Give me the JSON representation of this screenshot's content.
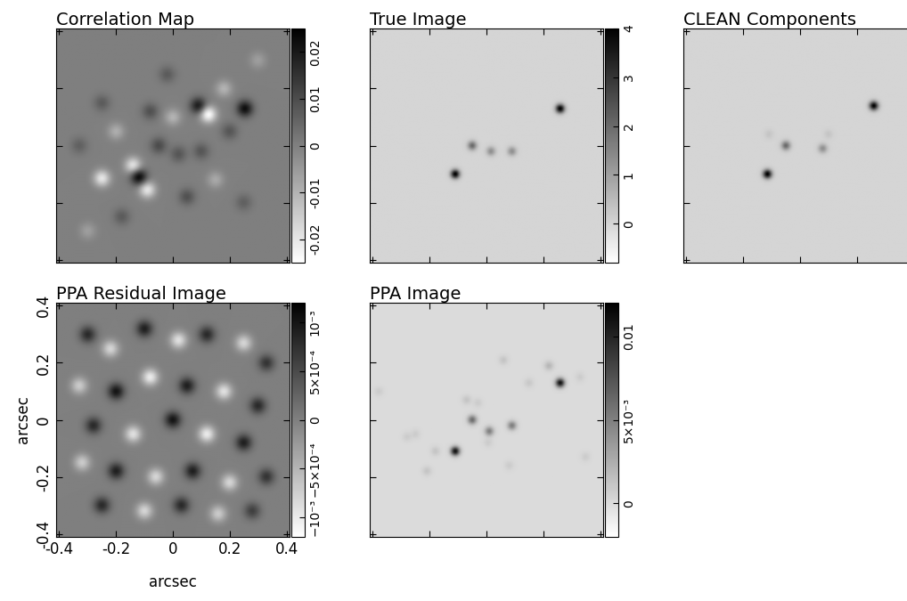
{
  "chart_data": [
    {
      "type": "heatmap",
      "title": "Correlation Map",
      "xlim": [
        -0.41,
        0.41
      ],
      "ylim": [
        -0.41,
        0.41
      ],
      "xticks": [
        -0.4,
        -0.2,
        0,
        0.2,
        0.4
      ],
      "yticks": [
        -0.4,
        -0.2,
        0,
        0.2,
        0.4
      ],
      "tick_labels": false,
      "sources": [
        {
          "x": 0.254,
          "y": 0.13,
          "value": 0.022
        },
        {
          "x": 0.09,
          "y": 0.14,
          "value": 0.02
        },
        {
          "x": -0.12,
          "y": -0.11,
          "value": 0.024
        },
        {
          "x": -0.25,
          "y": -0.115,
          "value": -0.02
        },
        {
          "x": 0.125,
          "y": 0.11,
          "value": -0.025
        },
        {
          "x": -0.14,
          "y": -0.07,
          "value": -0.02
        },
        {
          "x": -0.09,
          "y": -0.155,
          "value": -0.02
        },
        {
          "x": -0.05,
          "y": 0.0,
          "value": 0.01
        },
        {
          "x": 0.02,
          "y": -0.03,
          "value": 0.008
        },
        {
          "x": 0.1,
          "y": -0.02,
          "value": 0.008
        },
        {
          "x": 0.0,
          "y": 0.1,
          "value": -0.01
        },
        {
          "x": -0.08,
          "y": 0.12,
          "value": 0.009
        },
        {
          "x": 0.18,
          "y": 0.2,
          "value": -0.01
        },
        {
          "x": 0.2,
          "y": 0.05,
          "value": 0.008
        },
        {
          "x": -0.2,
          "y": 0.05,
          "value": -0.009
        },
        {
          "x": -0.25,
          "y": 0.15,
          "value": 0.007
        },
        {
          "x": 0.05,
          "y": -0.18,
          "value": 0.009
        },
        {
          "x": 0.15,
          "y": -0.12,
          "value": -0.008
        },
        {
          "x": -0.18,
          "y": -0.25,
          "value": 0.007
        },
        {
          "x": 0.25,
          "y": -0.2,
          "value": 0.006
        },
        {
          "x": -0.3,
          "y": -0.3,
          "value": -0.006
        },
        {
          "x": 0.3,
          "y": 0.3,
          "value": -0.006
        },
        {
          "x": -0.02,
          "y": 0.25,
          "value": 0.007
        },
        {
          "x": -0.33,
          "y": 0.0,
          "value": 0.006
        }
      ],
      "colorbar_lim": [
        -0.025,
        0.025
      ],
      "colorbar_ticks": [
        -0.02,
        -0.01,
        0,
        0.01,
        0.02
      ]
    },
    {
      "type": "heatmap",
      "title": "True Image",
      "xlim": [
        -0.41,
        0.41
      ],
      "ylim": [
        -0.41,
        0.41
      ],
      "xticks": [
        -0.4,
        -0.2,
        0,
        0.2,
        0.4
      ],
      "yticks": [
        -0.4,
        -0.2,
        0,
        0.2,
        0.4
      ],
      "tick_labels": false,
      "sources": [
        {
          "x": 0.26,
          "y": 0.13,
          "value": 4
        },
        {
          "x": -0.11,
          "y": -0.1,
          "value": 4
        },
        {
          "x": -0.05,
          "y": 0.0,
          "value": 2
        },
        {
          "x": 0.016,
          "y": -0.02,
          "value": 1.3
        },
        {
          "x": 0.09,
          "y": -0.02,
          "value": 1.3
        }
      ],
      "colorbar_lim": [
        -0.8,
        4
      ],
      "colorbar_ticks": [
        0,
        1,
        2,
        3,
        4
      ]
    },
    {
      "type": "heatmap",
      "title": "CLEAN Components",
      "xlim": [
        -0.41,
        0.41
      ],
      "ylim": [
        -0.41,
        0.41
      ],
      "xticks": [
        -0.4,
        -0.2,
        0,
        0.2,
        0.4
      ],
      "yticks": [
        -0.4,
        -0.2,
        0,
        0.2,
        0.4
      ],
      "tick_labels": false,
      "sources": [
        {
          "x": 0.26,
          "y": 0.14,
          "value": 4
        },
        {
          "x": -0.115,
          "y": -0.1,
          "value": 4
        },
        {
          "x": -0.05,
          "y": 0.0,
          "value": 2
        },
        {
          "x": 0.08,
          "y": -0.01,
          "value": 1.3
        },
        {
          "x": -0.11,
          "y": 0.04,
          "value": 0.3
        },
        {
          "x": 0.1,
          "y": 0.04,
          "value": 0.3
        }
      ],
      "colorbar_lim": [
        -0.8,
        4
      ]
    },
    {
      "type": "heatmap",
      "title": "PPA Residual Image",
      "xlim": [
        -0.41,
        0.41
      ],
      "ylim": [
        -0.41,
        0.41
      ],
      "xticks": [
        -0.4,
        -0.2,
        0,
        0.2,
        0.4
      ],
      "yticks": [
        -0.4,
        -0.2,
        0,
        0.2,
        0.4
      ],
      "xlabel": "arcsec",
      "ylabel": "arcsec",
      "sources": [
        {
          "x": -0.3,
          "y": 0.3,
          "value": 0.0008
        },
        {
          "x": -0.22,
          "y": 0.25,
          "value": -0.0008
        },
        {
          "x": -0.1,
          "y": 0.32,
          "value": 0.0009
        },
        {
          "x": 0.02,
          "y": 0.28,
          "value": -0.0009
        },
        {
          "x": 0.12,
          "y": 0.3,
          "value": 0.0008
        },
        {
          "x": 0.25,
          "y": 0.27,
          "value": -0.0008
        },
        {
          "x": 0.33,
          "y": 0.2,
          "value": 0.0007
        },
        {
          "x": -0.33,
          "y": 0.12,
          "value": -0.0007
        },
        {
          "x": -0.2,
          "y": 0.1,
          "value": 0.001
        },
        {
          "x": -0.08,
          "y": 0.15,
          "value": -0.001
        },
        {
          "x": 0.05,
          "y": 0.12,
          "value": 0.0009
        },
        {
          "x": 0.18,
          "y": 0.1,
          "value": -0.0009
        },
        {
          "x": 0.3,
          "y": 0.05,
          "value": 0.0008
        },
        {
          "x": -0.28,
          "y": -0.02,
          "value": 0.0008
        },
        {
          "x": -0.14,
          "y": -0.05,
          "value": -0.0009
        },
        {
          "x": 0.0,
          "y": 0.0,
          "value": 0.001
        },
        {
          "x": 0.12,
          "y": -0.05,
          "value": -0.001
        },
        {
          "x": 0.25,
          "y": -0.08,
          "value": 0.0009
        },
        {
          "x": -0.32,
          "y": -0.15,
          "value": -0.0007
        },
        {
          "x": -0.2,
          "y": -0.18,
          "value": 0.0009
        },
        {
          "x": -0.06,
          "y": -0.2,
          "value": -0.0008
        },
        {
          "x": 0.07,
          "y": -0.18,
          "value": 0.0009
        },
        {
          "x": 0.2,
          "y": -0.22,
          "value": -0.0008
        },
        {
          "x": 0.33,
          "y": -0.2,
          "value": 0.0007
        },
        {
          "x": -0.25,
          "y": -0.3,
          "value": 0.0008
        },
        {
          "x": -0.1,
          "y": -0.32,
          "value": -0.0008
        },
        {
          "x": 0.03,
          "y": -0.3,
          "value": 0.0008
        },
        {
          "x": 0.16,
          "y": -0.33,
          "value": -0.0007
        },
        {
          "x": 0.28,
          "y": -0.32,
          "value": 0.0006
        }
      ],
      "colorbar_lim": [
        -0.0012,
        0.0012
      ],
      "colorbar_ticks": [
        {
          "value": -0.001,
          "label": "−10⁻³"
        },
        {
          "value": -0.0005,
          "label": "−5×10⁻⁴"
        },
        {
          "value": 0,
          "label": "0"
        },
        {
          "value": 0.0005,
          "label": "5×10⁻⁴"
        },
        {
          "value": 0.001,
          "label": "10⁻³"
        }
      ]
    },
    {
      "type": "heatmap",
      "title": "PPA Image",
      "xlim": [
        -0.41,
        0.41
      ],
      "ylim": [
        -0.41,
        0.41
      ],
      "xticks": [
        -0.4,
        -0.2,
        0,
        0.2,
        0.4
      ],
      "yticks": [
        -0.4,
        -0.2,
        0,
        0.2,
        0.4
      ],
      "tick_labels": false,
      "sources": [
        {
          "x": 0.26,
          "y": 0.13,
          "value": 0.011
        },
        {
          "x": -0.11,
          "y": -0.11,
          "value": 0.011
        },
        {
          "x": -0.05,
          "y": 0.0,
          "value": 0.006
        },
        {
          "x": 0.01,
          "y": -0.04,
          "value": 0.005
        },
        {
          "x": 0.09,
          "y": -0.02,
          "value": 0.005
        },
        {
          "x": 0.22,
          "y": 0.19,
          "value": 0.002
        },
        {
          "x": 0.06,
          "y": 0.21,
          "value": 0.0012
        },
        {
          "x": 0.15,
          "y": 0.13,
          "value": 0.001
        },
        {
          "x": -0.07,
          "y": 0.07,
          "value": 0.0012
        },
        {
          "x": -0.25,
          "y": -0.05,
          "value": 0.0008
        },
        {
          "x": -0.28,
          "y": -0.06,
          "value": 0.0008
        },
        {
          "x": -0.18,
          "y": -0.11,
          "value": 0.0012
        },
        {
          "x": -0.21,
          "y": -0.18,
          "value": 0.0012
        },
        {
          "x": 0.006,
          "y": -0.08,
          "value": 0.0008
        },
        {
          "x": 0.08,
          "y": -0.16,
          "value": 0.0008
        },
        {
          "x": 0.33,
          "y": 0.15,
          "value": 0.0008
        },
        {
          "x": 0.35,
          "y": -0.13,
          "value": 0.0008
        },
        {
          "x": -0.38,
          "y": 0.1,
          "value": 0.0008
        },
        {
          "x": -0.03,
          "y": 0.06,
          "value": 0.0008
        }
      ],
      "colorbar_lim": [
        -0.002,
        0.012
      ],
      "colorbar_ticks": [
        0,
        {
          "value": 0.005,
          "label": "5×10⁻³"
        },
        0.01
      ]
    }
  ]
}
